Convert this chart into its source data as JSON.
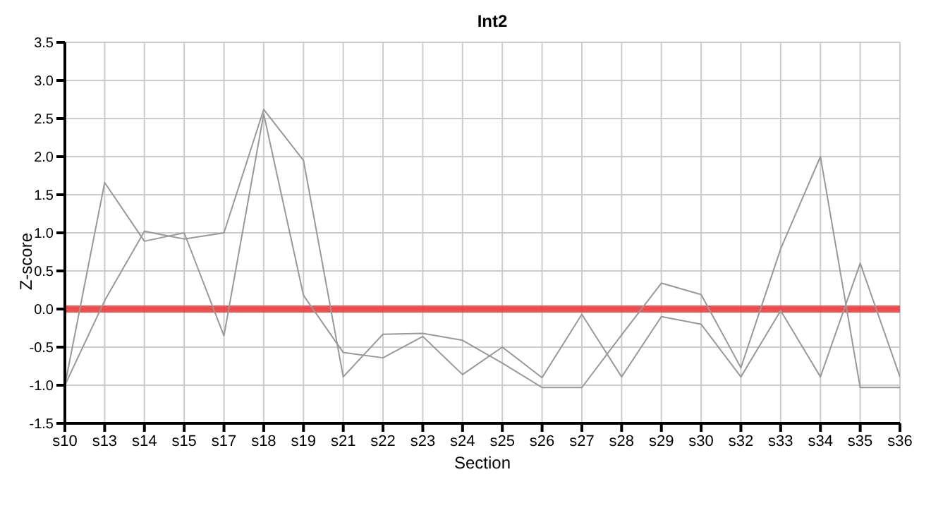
{
  "chart_data": {
    "type": "line",
    "title": "Int2",
    "xlabel": "Section",
    "ylabel": "Z-score",
    "categories": [
      "s10",
      "s13",
      "s14",
      "s15",
      "s17",
      "s18",
      "s19",
      "s21",
      "s22",
      "s23",
      "s24",
      "s25",
      "s26",
      "s27",
      "s28",
      "s29",
      "s30",
      "s32",
      "s33",
      "s34",
      "s35",
      "s36"
    ],
    "series": [
      {
        "color": "#999999",
        "values": [
          -1.0,
          1.66,
          0.89,
          1.0,
          -0.35,
          2.56,
          0.18,
          -0.57,
          -0.64,
          -0.36,
          -0.86,
          -0.5,
          -0.9,
          -0.07,
          -0.89,
          -0.1,
          -0.2,
          -0.89,
          -0.02,
          -0.89,
          0.6,
          -0.89
        ]
      },
      {
        "color": "#999999",
        "values": [
          -1.0,
          0.11,
          1.02,
          0.92,
          1.0,
          2.62,
          1.95,
          -0.89,
          -0.33,
          -0.32,
          -0.41,
          -0.71,
          -1.03,
          -1.03,
          -0.34,
          0.34,
          0.19,
          -0.77,
          0.79,
          2.0,
          -1.03,
          -1.03
        ]
      }
    ],
    "ylim": [
      -1.5,
      3.5
    ],
    "yticks": [
      -1.5,
      {
        "value": -1,
        "label": "-1.0"
      },
      -0.5,
      {
        "value": 0,
        "label": "0.0"
      },
      0.5,
      {
        "value": 1,
        "label": "1.0"
      },
      1.5,
      {
        "value": 2,
        "label": "2.0"
      },
      2.5,
      {
        "value": 3,
        "label": "3.0"
      },
      3.5
    ],
    "ref_lines": [
      {
        "axis": "y",
        "value": 0,
        "color": "#ee3333"
      }
    ],
    "grid": true,
    "legend": false,
    "marker": "none",
    "line_style": "solid"
  }
}
